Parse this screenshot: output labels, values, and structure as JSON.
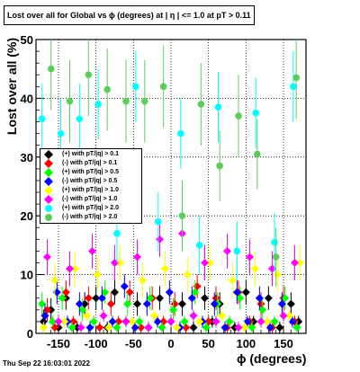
{
  "title": "Lost over all for Global vs ϕ (degrees) at |   η | <= 1.0 at pT > 0.11",
  "footer": "Thu Sep 22 16:03:01 2022",
  "chart_data": {
    "type": "scatter",
    "xlabel": "ϕ (degrees)",
    "ylabel": "Lost over all (%)",
    "xlim": [
      -180,
      180
    ],
    "ylim": [
      0,
      50
    ],
    "grid": true,
    "legend_position": "left-middle",
    "x_ticks": [
      -150,
      -100,
      -50,
      0,
      50,
      100,
      150
    ],
    "y_ticks": [
      0,
      10,
      20,
      30,
      40,
      50
    ],
    "series": [
      {
        "name": "(+) with pT/|q| > 0.1",
        "color": "#000000",
        "x": [
          -170,
          -160,
          -150,
          -140,
          -125,
          -115,
          -100,
          -85,
          -75,
          -60,
          -45,
          -30,
          -15,
          0,
          15,
          30,
          45,
          55,
          65,
          85,
          100,
          110,
          130,
          145,
          160,
          170
        ],
        "y": [
          2,
          4,
          1,
          6,
          1,
          5,
          6,
          1,
          7,
          2,
          5,
          1,
          6,
          2,
          5,
          1,
          6,
          2,
          5,
          1,
          7,
          2,
          6,
          1,
          5,
          2
        ],
        "err": [
          2,
          2,
          1,
          2,
          1,
          2,
          2,
          1,
          2,
          1,
          2,
          1,
          2,
          1,
          2,
          1,
          2,
          1,
          2,
          1,
          2,
          1,
          2,
          1,
          2,
          1
        ]
      },
      {
        "name": "(-) with pT/|q| > 0.1",
        "color": "#ff0000",
        "x": [
          -165,
          -155,
          -140,
          -130,
          -110,
          -95,
          -80,
          -70,
          -55,
          -40,
          -25,
          -10,
          5,
          20,
          35,
          50,
          60,
          75,
          90,
          105,
          120,
          135,
          150,
          165
        ],
        "y": [
          4,
          1,
          7,
          2,
          6,
          1,
          5,
          2,
          7,
          1,
          6,
          2,
          5,
          1,
          8,
          2,
          6,
          1,
          7,
          2,
          5,
          1,
          6,
          2
        ],
        "err": [
          2,
          1,
          2,
          1,
          2,
          1,
          2,
          1,
          2,
          1,
          2,
          1,
          2,
          1,
          2,
          1,
          2,
          1,
          2,
          1,
          2,
          1,
          2,
          1
        ]
      },
      {
        "name": "(+) with pT/|q| > 0.5",
        "color": "#00ff00",
        "x": [
          -172,
          -158,
          -145,
          -132,
          -118,
          -103,
          -88,
          -72,
          -58,
          -42,
          -28,
          -12,
          3,
          18,
          32,
          47,
          62,
          78,
          92,
          108,
          122,
          138,
          152,
          168
        ],
        "y": [
          5,
          2,
          6,
          1,
          4,
          2,
          7,
          1,
          5,
          2,
          6,
          1,
          4,
          2,
          7,
          1,
          5,
          2,
          6,
          1,
          4,
          2,
          6,
          1
        ],
        "err": [
          2,
          1,
          2,
          1,
          2,
          1,
          2,
          1,
          2,
          1,
          2,
          1,
          2,
          1,
          2,
          1,
          2,
          1,
          2,
          1,
          2,
          1,
          2,
          1
        ]
      },
      {
        "name": "(-) with pT/|q| > 0.5",
        "color": "#0000ff",
        "x": [
          -168,
          -152,
          -138,
          -122,
          -108,
          -92,
          -78,
          -62,
          -48,
          -32,
          -18,
          -2,
          12,
          28,
          42,
          58,
          72,
          88,
          102,
          118,
          132,
          148,
          162
        ],
        "y": [
          3,
          7,
          2,
          5,
          1,
          6,
          2,
          8,
          1,
          5,
          2,
          7,
          1,
          6,
          2,
          5,
          1,
          7,
          2,
          6,
          1,
          5,
          2
        ],
        "err": [
          2,
          2,
          1,
          2,
          1,
          2,
          1,
          2,
          1,
          2,
          1,
          2,
          1,
          2,
          1,
          2,
          1,
          2,
          1,
          2,
          1,
          2,
          1
        ]
      },
      {
        "name": "(+) with pT/|q| > 1.0",
        "color": "#ffff00",
        "x": [
          -170,
          -155,
          -142,
          -128,
          -112,
          -98,
          -83,
          -68,
          -52,
          -38,
          -22,
          -8,
          8,
          22,
          38,
          52,
          68,
          82,
          98,
          112,
          128,
          142,
          158,
          172
        ],
        "y": [
          1,
          9,
          2,
          11,
          3,
          10,
          1,
          12,
          2,
          9,
          3,
          11,
          1,
          10,
          2,
          12,
          3,
          9,
          1,
          11,
          2,
          10,
          3,
          12
        ],
        "err": [
          1,
          3,
          1,
          3,
          1,
          3,
          1,
          3,
          1,
          3,
          1,
          3,
          1,
          3,
          1,
          3,
          1,
          3,
          1,
          3,
          1,
          3,
          1,
          3
        ]
      },
      {
        "name": "(-) with pT/|q| > 1.0",
        "color": "#ff00ff",
        "x": [
          -165,
          -150,
          -135,
          -120,
          -105,
          -90,
          -75,
          -60,
          -45,
          -30,
          -15,
          0,
          15,
          30,
          45,
          60,
          75,
          90,
          105,
          120,
          135,
          150,
          165
        ],
        "y": [
          13,
          2,
          11,
          1,
          14,
          3,
          12,
          2,
          13,
          1,
          16,
          2,
          17,
          3,
          12,
          2,
          14,
          1,
          13,
          2,
          11,
          3,
          12
        ],
        "err": [
          3,
          1,
          3,
          1,
          3,
          1,
          3,
          1,
          3,
          1,
          3,
          1,
          3,
          1,
          3,
          1,
          3,
          1,
          3,
          1,
          3,
          1,
          3
        ]
      },
      {
        "name": "(+) with pT/|q| > 2.0",
        "color": "#00ffff",
        "x": [
          -172,
          -147,
          -122,
          -97,
          -72,
          -47,
          -17,
          13,
          38,
          63,
          88,
          113,
          138,
          163
        ],
        "y": [
          36.5,
          34,
          36.5,
          39,
          17,
          42,
          19,
          34,
          15,
          38.5,
          14,
          37.5,
          15.5,
          42
        ],
        "err": [
          6,
          6,
          6,
          6,
          5,
          6,
          5,
          6,
          5,
          6,
          5,
          6,
          5,
          6
        ]
      },
      {
        "name": "(-) with pT/|q| > 2.0",
        "color": "#5ccd5c",
        "x": [
          -160,
          -135,
          -110,
          -85,
          -60,
          -35,
          -10,
          15,
          40,
          65,
          90,
          115,
          140,
          167
        ],
        "y": [
          45,
          39.5,
          44,
          41.5,
          39.5,
          39.5,
          42,
          20,
          39,
          28.5,
          37,
          30.5,
          13,
          43.5
        ],
        "err": [
          7,
          7,
          7,
          7,
          7,
          7,
          7,
          6,
          7,
          6,
          7,
          6,
          5,
          7
        ]
      }
    ]
  }
}
